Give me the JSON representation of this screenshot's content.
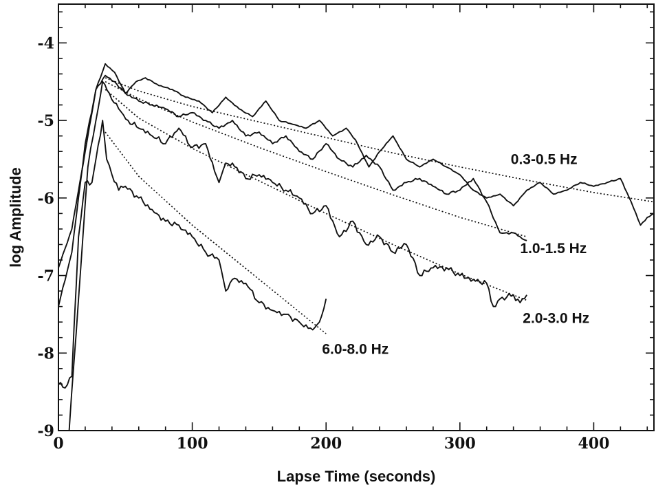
{
  "chart_data": {
    "type": "line",
    "xlabel": "Lapse Time (seconds)",
    "ylabel": "log Amplitude",
    "xlim": [
      0,
      445
    ],
    "ylim": [
      -9,
      -3.5
    ],
    "xticks": [
      0,
      100,
      200,
      300,
      400
    ],
    "xtick_labels": [
      "0",
      "100",
      "200",
      "300",
      "400"
    ],
    "yticks": [
      -4,
      -5,
      -6,
      -7,
      -8,
      -9
    ],
    "ytick_labels": [
      "-4",
      "-5",
      "-6",
      "-7",
      "-8",
      "-9"
    ],
    "grid": false,
    "legend": "none",
    "series": [
      {
        "name": "0.3-0.5 Hz",
        "x": [
          0,
          10,
          20,
          28,
          35,
          42,
          50,
          58,
          65,
          75,
          85,
          95,
          105,
          115,
          125,
          135,
          145,
          155,
          165,
          175,
          185,
          195,
          205,
          215,
          222,
          232,
          240,
          250,
          260,
          270,
          280,
          290,
          300,
          310,
          320,
          330,
          340,
          350,
          360,
          370,
          380,
          390,
          400,
          410,
          420,
          428,
          435,
          440,
          445
        ],
        "y": [
          -6.9,
          -6.4,
          -5.4,
          -4.6,
          -4.27,
          -4.38,
          -4.65,
          -4.5,
          -4.45,
          -4.55,
          -4.6,
          -4.7,
          -4.75,
          -4.9,
          -4.7,
          -4.85,
          -4.95,
          -4.75,
          -5.0,
          -5.05,
          -5.1,
          -5.0,
          -5.2,
          -5.1,
          -5.25,
          -5.6,
          -5.4,
          -5.2,
          -5.5,
          -5.6,
          -5.5,
          -5.6,
          -5.7,
          -5.9,
          -6.0,
          -5.95,
          -6.1,
          -5.9,
          -5.8,
          -5.95,
          -5.9,
          -5.8,
          -5.85,
          -5.8,
          -5.75,
          -6.05,
          -6.35,
          -6.25,
          -6.2
        ]
      },
      {
        "name": "1.0-1.5 Hz",
        "x": [
          0,
          10,
          20,
          28,
          35,
          42,
          50,
          60,
          70,
          80,
          90,
          100,
          110,
          120,
          130,
          140,
          150,
          160,
          170,
          180,
          190,
          200,
          210,
          220,
          230,
          240,
          250,
          260,
          270,
          280,
          290,
          300,
          310,
          320,
          330,
          340,
          345,
          350
        ],
        "y": [
          -7.4,
          -6.7,
          -5.3,
          -4.6,
          -4.42,
          -4.5,
          -4.65,
          -4.75,
          -4.8,
          -4.85,
          -4.95,
          -4.9,
          -5.0,
          -5.1,
          -5.0,
          -5.2,
          -5.15,
          -5.3,
          -5.2,
          -5.4,
          -5.5,
          -5.3,
          -5.5,
          -5.6,
          -5.45,
          -5.6,
          -5.9,
          -5.8,
          -5.75,
          -5.85,
          -5.95,
          -5.9,
          -5.75,
          -6.05,
          -6.45,
          -6.45,
          -6.5,
          -6.55
        ]
      },
      {
        "name": "2.0-3.0 Hz",
        "x": [
          8,
          15,
          22,
          28,
          33,
          38,
          45,
          52,
          60,
          70,
          80,
          90,
          100,
          110,
          120,
          125,
          130,
          140,
          150,
          160,
          170,
          180,
          190,
          200,
          210,
          220,
          230,
          240,
          250,
          260,
          270,
          280,
          290,
          300,
          310,
          320,
          325,
          330,
          340,
          345,
          350
        ],
        "y": [
          -9.0,
          -7.3,
          -5.6,
          -5.0,
          -4.5,
          -4.65,
          -4.85,
          -5.0,
          -5.1,
          -5.2,
          -5.3,
          -5.1,
          -5.35,
          -5.3,
          -5.8,
          -5.55,
          -5.55,
          -5.75,
          -5.7,
          -5.8,
          -5.9,
          -6.0,
          -6.2,
          -6.1,
          -6.5,
          -6.3,
          -6.6,
          -6.5,
          -6.7,
          -6.6,
          -7.0,
          -6.9,
          -6.9,
          -7.0,
          -7.05,
          -7.1,
          -7.4,
          -7.3,
          -7.25,
          -7.35,
          -7.25
        ]
      },
      {
        "name": "6.0-8.0 Hz",
        "x": [
          0,
          5,
          10,
          15,
          20,
          25,
          28,
          33,
          36,
          40,
          45,
          50,
          60,
          70,
          80,
          90,
          100,
          110,
          120,
          125,
          130,
          140,
          150,
          160,
          170,
          180,
          190,
          195,
          200
        ],
        "y": [
          -8.4,
          -8.45,
          -8.3,
          -6.5,
          -5.8,
          -5.8,
          -5.5,
          -5.0,
          -5.5,
          -5.7,
          -5.9,
          -5.85,
          -6.0,
          -6.15,
          -6.3,
          -6.35,
          -6.5,
          -6.7,
          -6.8,
          -7.2,
          -7.05,
          -7.1,
          -7.35,
          -7.45,
          -7.5,
          -7.6,
          -7.7,
          -7.6,
          -7.3
        ]
      }
    ],
    "fits": [
      {
        "x": [
          35,
          60,
          100,
          150,
          200,
          250,
          300,
          350,
          400,
          445
        ],
        "y": [
          -4.45,
          -4.62,
          -4.82,
          -5.02,
          -5.22,
          -5.42,
          -5.6,
          -5.77,
          -5.93,
          -6.05
        ]
      },
      {
        "x": [
          35,
          60,
          100,
          150,
          200,
          250,
          300,
          350
        ],
        "y": [
          -4.5,
          -4.72,
          -5.02,
          -5.35,
          -5.66,
          -5.96,
          -6.25,
          -6.5
        ]
      },
      {
        "x": [
          35,
          60,
          100,
          150,
          200,
          250,
          300,
          350
        ],
        "y": [
          -4.6,
          -4.97,
          -5.36,
          -5.78,
          -6.2,
          -6.6,
          -6.98,
          -7.32
        ]
      },
      {
        "x": [
          35,
          60,
          100,
          150,
          200
        ],
        "y": [
          -5.15,
          -5.72,
          -6.35,
          -7.05,
          -7.75
        ]
      }
    ],
    "series_labels": [
      {
        "text": "0.3-0.5 Hz",
        "x": 338,
        "y": -5.5
      },
      {
        "text": "1.0-1.5 Hz",
        "x": 345,
        "y": -6.65
      },
      {
        "text": "2.0-3.0 Hz",
        "x": 347,
        "y": -7.55
      },
      {
        "text": "6.0-8.0 Hz",
        "x": 197,
        "y": -7.95
      }
    ]
  }
}
